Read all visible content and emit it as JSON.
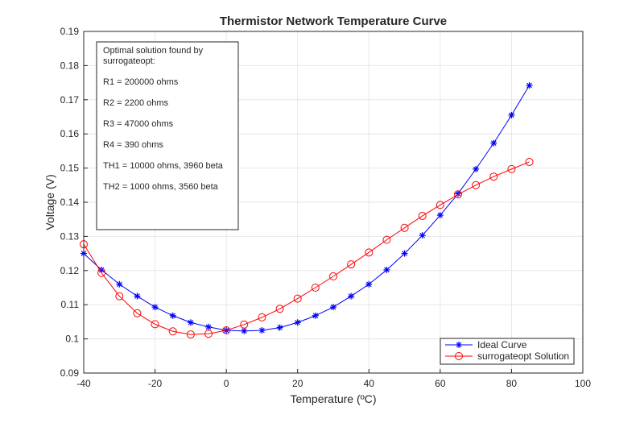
{
  "chart_data": {
    "type": "line",
    "title": "Thermistor Network Temperature Curve",
    "xlabel": "Temperature (ºC)",
    "ylabel": "Voltage (V)",
    "xlim": [
      -40,
      100
    ],
    "ylim": [
      0.09,
      0.19
    ],
    "xticks": [
      "-40",
      "-20",
      "0",
      "20",
      "40",
      "60",
      "80",
      "100"
    ],
    "yticks": [
      "0.09",
      "0.1",
      "0.11",
      "0.12",
      "0.13",
      "0.14",
      "0.15",
      "0.16",
      "0.17",
      "0.18",
      "0.19"
    ],
    "grid": true,
    "legend_position": "bottom-right",
    "x": [
      -40,
      -35,
      -30,
      -25,
      -20,
      -15,
      -10,
      -5,
      0,
      5,
      10,
      15,
      20,
      25,
      30,
      35,
      40,
      45,
      50,
      55,
      60,
      65,
      70,
      75,
      80,
      85
    ],
    "series": [
      {
        "name": "Ideal Curve",
        "color": "#0000ff",
        "marker": "asterisk",
        "values": [
          0.125,
          0.1202,
          0.116,
          0.1125,
          0.1093,
          0.1068,
          0.1048,
          0.1035,
          0.1025,
          0.1023,
          0.1025,
          0.1033,
          0.1048,
          0.1068,
          0.1093,
          0.1125,
          0.116,
          0.1202,
          0.125,
          0.1303,
          0.1362,
          0.1425,
          0.1497,
          0.1573,
          0.1655,
          0.1742
        ]
      },
      {
        "name": "surrogateopt Solution",
        "color": "#ff0000",
        "marker": "circle",
        "values": [
          0.1277,
          0.1193,
          0.1125,
          0.1075,
          0.1043,
          0.1022,
          0.1013,
          0.1015,
          0.1025,
          0.1042,
          0.1063,
          0.1088,
          0.1118,
          0.115,
          0.1183,
          0.1218,
          0.1253,
          0.129,
          0.1325,
          0.136,
          0.1392,
          0.1423,
          0.145,
          0.1475,
          0.1497,
          0.1518
        ]
      }
    ],
    "annotation": {
      "lines": [
        "Optimal solution found by",
        "surrogateopt:",
        "R1 = 200000 ohms",
        "R2 =   2200 ohms",
        "R3 =  47000 ohms",
        "R4 =    390 ohms",
        "TH1 =  10000 ohms,   3960 beta",
        "TH2 =   1000 ohms,   3560 beta"
      ]
    }
  }
}
